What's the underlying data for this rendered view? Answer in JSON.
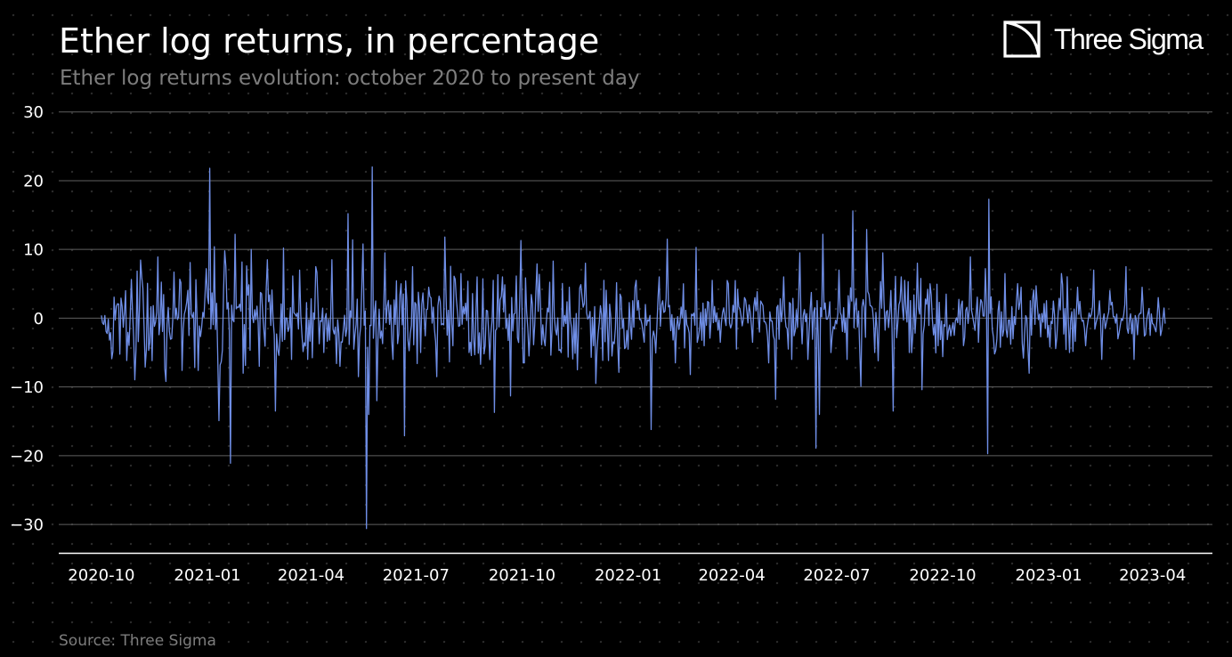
{
  "header": {
    "title": "Ether log returns, in percentage",
    "subtitle": "Ether log returns evolution: october 2020 to present day",
    "brand": "Three Sigma"
  },
  "footer": {
    "source": "Source: Three Sigma"
  },
  "colors": {
    "background": "#000000",
    "line": "#6f8ee6",
    "grid": "#5f5f5f",
    "axis": "#ffffff",
    "text": "#ffffff",
    "muted": "#7d7d7d"
  },
  "chart_data": {
    "type": "line",
    "title": "Ether log returns, in percentage",
    "subtitle": "Ether log returns evolution: october 2020 to present day",
    "xlabel": "",
    "ylabel": "",
    "x_range": [
      "2020-08-25",
      "2023-05-23"
    ],
    "ylim": [
      -34,
      31
    ],
    "yticks": [
      30,
      20,
      10,
      0,
      -10,
      -20,
      -30
    ],
    "ytick_labels": [
      "30",
      "20",
      "10",
      "0",
      "−10",
      "−20",
      "−30"
    ],
    "xticks": [
      "2020-10-01",
      "2021-01-01",
      "2021-04-01",
      "2021-07-01",
      "2021-10-01",
      "2022-01-01",
      "2022-04-01",
      "2022-07-01",
      "2022-10-01",
      "2023-01-01",
      "2023-04-01"
    ],
    "xtick_labels": [
      "2020-10",
      "2021-01",
      "2021-04",
      "2021-07",
      "2021-10",
      "2022-01",
      "2022-04",
      "2022-07",
      "2022-10",
      "2023-01",
      "2023-04"
    ],
    "grid": "horizontal",
    "legend": "none",
    "series": [
      {
        "color": "#6f8ee6",
        "start": "2020-10-01",
        "end": "2023-04-12",
        "approximate": true,
        "points": [
          [
            "2020-10-01",
            0.4
          ],
          [
            "2020-10-08",
            -3.2
          ],
          [
            "2020-10-15",
            2.1
          ],
          [
            "2020-10-22",
            4.0
          ],
          [
            "2020-10-29",
            -2.8
          ],
          [
            "2020-11-05",
            6.0
          ],
          [
            "2020-11-12",
            -3.5
          ],
          [
            "2020-11-19",
            8.9
          ],
          [
            "2020-11-26",
            -9.2
          ],
          [
            "2020-12-03",
            6.7
          ],
          [
            "2020-12-10",
            -7.6
          ],
          [
            "2020-12-17",
            8.1
          ],
          [
            "2020-12-24",
            -7.6
          ],
          [
            "2020-12-31",
            7.2
          ],
          [
            "2021-01-03",
            21.8
          ],
          [
            "2021-01-07",
            10.4
          ],
          [
            "2021-01-11",
            -14.9
          ],
          [
            "2021-01-16",
            9.8
          ],
          [
            "2021-01-21",
            -21.1
          ],
          [
            "2021-01-25",
            12.2
          ],
          [
            "2021-02-01",
            -8.0
          ],
          [
            "2021-02-08",
            10.0
          ],
          [
            "2021-02-15",
            -7.0
          ],
          [
            "2021-02-22",
            8.5
          ],
          [
            "2021-03-01",
            -13.5
          ],
          [
            "2021-03-08",
            10.2
          ],
          [
            "2021-03-15",
            -6.0
          ],
          [
            "2021-03-22",
            7.0
          ],
          [
            "2021-03-29",
            -6.0
          ],
          [
            "2021-04-05",
            7.5
          ],
          [
            "2021-04-12",
            -5.0
          ],
          [
            "2021-04-19",
            8.5
          ],
          [
            "2021-04-26",
            -7.0
          ],
          [
            "2021-05-03",
            15.2
          ],
          [
            "2021-05-07",
            11.4
          ],
          [
            "2021-05-12",
            -8.5
          ],
          [
            "2021-05-16",
            10.8
          ],
          [
            "2021-05-19",
            -30.6
          ],
          [
            "2021-05-21",
            -14.0
          ],
          [
            "2021-05-24",
            22.0
          ],
          [
            "2021-05-28",
            -12.0
          ],
          [
            "2021-06-04",
            9.5
          ],
          [
            "2021-06-11",
            -6.0
          ],
          [
            "2021-06-18",
            5.0
          ],
          [
            "2021-06-21",
            -17.1
          ],
          [
            "2021-06-28",
            7.5
          ],
          [
            "2021-07-05",
            -5.0
          ],
          [
            "2021-07-12",
            4.5
          ],
          [
            "2021-07-19",
            -8.5
          ],
          [
            "2021-07-26",
            11.8
          ],
          [
            "2021-08-02",
            -4.0
          ],
          [
            "2021-08-09",
            6.5
          ],
          [
            "2021-08-16",
            -5.0
          ],
          [
            "2021-08-23",
            6.0
          ],
          [
            "2021-08-30",
            -4.0
          ],
          [
            "2021-09-06",
            5.5
          ],
          [
            "2021-09-07",
            -13.7
          ],
          [
            "2021-09-14",
            6.0
          ],
          [
            "2021-09-21",
            -11.3
          ],
          [
            "2021-09-30",
            11.3
          ],
          [
            "2021-10-07",
            -5.5
          ],
          [
            "2021-10-14",
            7.9
          ],
          [
            "2021-10-21",
            -4.0
          ],
          [
            "2021-10-28",
            8.3
          ],
          [
            "2021-11-04",
            -5.0
          ],
          [
            "2021-11-11",
            4.5
          ],
          [
            "2021-11-18",
            -7.5
          ],
          [
            "2021-11-25",
            8.0
          ],
          [
            "2021-12-02",
            -4.0
          ],
          [
            "2021-12-04",
            -9.5
          ],
          [
            "2021-12-11",
            5.5
          ],
          [
            "2021-12-18",
            -5.5
          ],
          [
            "2021-12-25",
            3.5
          ],
          [
            "2022-01-01",
            -4.5
          ],
          [
            "2022-01-08",
            5.5
          ],
          [
            "2022-01-15",
            -3.5
          ],
          [
            "2022-01-21",
            -16.2
          ],
          [
            "2022-01-28",
            6.0
          ],
          [
            "2022-02-04",
            11.5
          ],
          [
            "2022-02-11",
            -6.5
          ],
          [
            "2022-02-18",
            5.0
          ],
          [
            "2022-02-24",
            -8.2
          ],
          [
            "2022-03-01",
            10.3
          ],
          [
            "2022-03-08",
            -4.0
          ],
          [
            "2022-03-15",
            5.5
          ],
          [
            "2022-03-22",
            -3.5
          ],
          [
            "2022-03-29",
            5.0
          ],
          [
            "2022-04-05",
            -4.5
          ],
          [
            "2022-04-12",
            3.0
          ],
          [
            "2022-04-19",
            -3.5
          ],
          [
            "2022-04-26",
            2.5
          ],
          [
            "2022-05-03",
            -6.5
          ],
          [
            "2022-05-09",
            -11.8
          ],
          [
            "2022-05-16",
            6.0
          ],
          [
            "2022-05-23",
            -6.0
          ],
          [
            "2022-05-30",
            9.5
          ],
          [
            "2022-06-06",
            -6.0
          ],
          [
            "2022-06-13",
            -18.9
          ],
          [
            "2022-06-16",
            -14.0
          ],
          [
            "2022-06-19",
            12.2
          ],
          [
            "2022-06-26",
            -5.0
          ],
          [
            "2022-07-03",
            7.0
          ],
          [
            "2022-07-10",
            -6.0
          ],
          [
            "2022-07-15",
            15.6
          ],
          [
            "2022-07-22",
            -9.9
          ],
          [
            "2022-07-27",
            12.9
          ],
          [
            "2022-08-03",
            -5.0
          ],
          [
            "2022-08-10",
            9.5
          ],
          [
            "2022-08-19",
            -13.5
          ],
          [
            "2022-08-26",
            6.0
          ],
          [
            "2022-09-02",
            -5.0
          ],
          [
            "2022-09-09",
            8.0
          ],
          [
            "2022-09-13",
            -10.4
          ],
          [
            "2022-09-20",
            5.0
          ],
          [
            "2022-09-27",
            -4.0
          ],
          [
            "2022-10-04",
            3.5
          ],
          [
            "2022-10-11",
            -2.5
          ],
          [
            "2022-10-18",
            2.5
          ],
          [
            "2022-10-25",
            8.9
          ],
          [
            "2022-11-01",
            -3.5
          ],
          [
            "2022-11-07",
            7.2
          ],
          [
            "2022-11-09",
            -19.7
          ],
          [
            "2022-11-10",
            17.3
          ],
          [
            "2022-11-17",
            -3.0
          ],
          [
            "2022-11-24",
            6.5
          ],
          [
            "2022-12-01",
            -3.0
          ],
          [
            "2022-12-08",
            4.5
          ],
          [
            "2022-12-15",
            -8.0
          ],
          [
            "2022-12-22",
            2.0
          ],
          [
            "2022-12-29",
            -1.5
          ],
          [
            "2023-01-05",
            2.5
          ],
          [
            "2023-01-12",
            6.5
          ],
          [
            "2023-01-19",
            -5.0
          ],
          [
            "2023-01-26",
            4.5
          ],
          [
            "2023-02-02",
            -4.0
          ],
          [
            "2023-02-09",
            7.0
          ],
          [
            "2023-02-16",
            -6.0
          ],
          [
            "2023-02-23",
            4.0
          ],
          [
            "2023-03-02",
            -3.0
          ],
          [
            "2023-03-09",
            7.5
          ],
          [
            "2023-03-16",
            -6.0
          ],
          [
            "2023-03-23",
            4.5
          ],
          [
            "2023-03-30",
            -2.5
          ],
          [
            "2023-04-06",
            3.0
          ],
          [
            "2023-04-12",
            -0.8
          ]
        ]
      }
    ]
  }
}
